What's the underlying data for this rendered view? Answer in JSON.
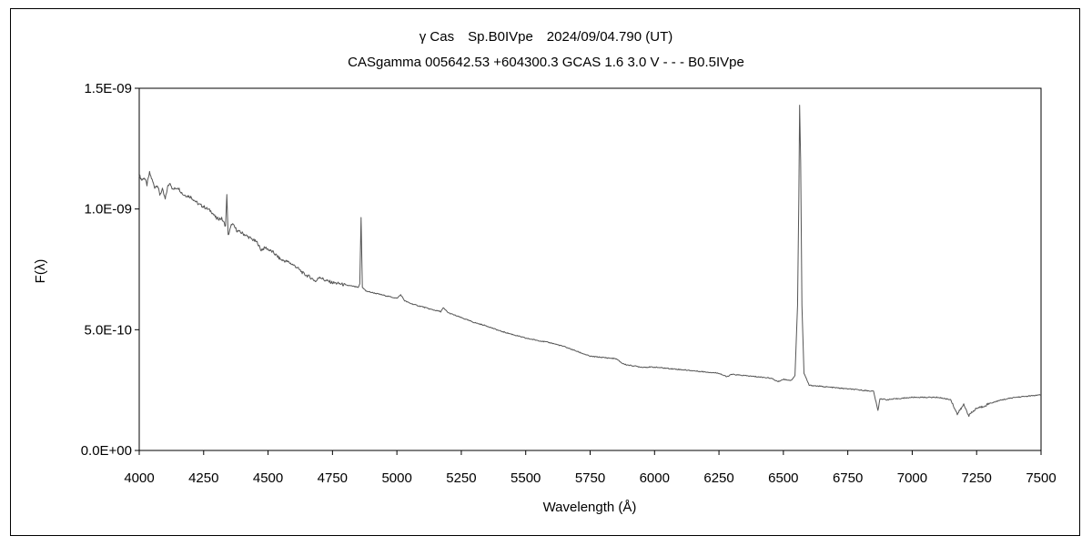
{
  "chart_data": {
    "type": "line",
    "title": "γ Cas　Sp.B0IVpe　2024/09/04.790 (UT)",
    "subtitle": "CASgamma 005642.53 +604300.3 GCAS 1.6 3.0 V - - - B0.5IVpe",
    "xlabel": "Wavelength (Å)",
    "ylabel": "F(λ)",
    "xlim": [
      4000,
      7500
    ],
    "ylim": [
      0,
      1.5e-09
    ],
    "xticks": [
      4000,
      4250,
      4500,
      4750,
      5000,
      5250,
      5500,
      5750,
      6000,
      6250,
      6500,
      6750,
      7000,
      7250,
      7500
    ],
    "xtick_labels": [
      "4000",
      "4250",
      "4500",
      "4750",
      "5000",
      "5250",
      "5500",
      "5750",
      "6000",
      "6250",
      "6500",
      "6750",
      "7000",
      "7250",
      "7500"
    ],
    "yticks": [
      0,
      5e-10,
      1e-09,
      1.5e-09
    ],
    "ytick_labels": [
      "0.0E+00",
      "5.0E-10",
      "1.0E-09",
      "1.5E-09"
    ],
    "grid": false,
    "series": [
      {
        "color": "#555555",
        "x": [
          4000,
          4010,
          4020,
          4030,
          4040,
          4050,
          4060,
          4070,
          4080,
          4090,
          4101,
          4110,
          4120,
          4130,
          4150,
          4170,
          4200,
          4230,
          4250,
          4280,
          4300,
          4320,
          4335,
          4340,
          4345,
          4360,
          4380,
          4400,
          4430,
          4460,
          4471,
          4490,
          4520,
          4550,
          4580,
          4610,
          4640,
          4660,
          4686,
          4700,
          4720,
          4750,
          4780,
          4800,
          4830,
          4850,
          4856,
          4861,
          4866,
          4872,
          4880,
          4920,
          4960,
          5000,
          5015,
          5030,
          5050,
          5080,
          5100,
          5130,
          5170,
          5180,
          5200,
          5250,
          5300,
          5350,
          5400,
          5450,
          5500,
          5550,
          5600,
          5650,
          5700,
          5750,
          5800,
          5850,
          5876,
          5890,
          5920,
          5950,
          6000,
          6050,
          6100,
          6150,
          6200,
          6250,
          6280,
          6300,
          6350,
          6400,
          6450,
          6480,
          6500,
          6530,
          6545,
          6555,
          6560,
          6563,
          6567,
          6572,
          6580,
          6600,
          6650,
          6700,
          6750,
          6850,
          6867,
          6875,
          6900,
          6950,
          7000,
          7050,
          7100,
          7150,
          7175,
          7200,
          7220,
          7250,
          7270,
          7300,
          7350,
          7400,
          7450,
          7500
        ],
        "y": [
          1.14e-09,
          1.12e-09,
          1.13e-09,
          1.1e-09,
          1.15e-09,
          1.12e-09,
          1.09e-09,
          1.1e-09,
          1.06e-09,
          1.08e-09,
          1.04e-09,
          1.09e-09,
          1.11e-09,
          1.08e-09,
          1.09e-09,
          1.06e-09,
          1.05e-09,
          1.02e-09,
          1.01e-09,
          9.9e-10,
          9.6e-10,
          9.6e-10,
          9.3e-10,
          1.06e-09,
          8.9e-10,
          9.4e-10,
          9.1e-10,
          9e-10,
          8.8e-10,
          8.6e-10,
          8.3e-10,
          8.4e-10,
          8.2e-10,
          7.9e-10,
          7.8e-10,
          7.6e-10,
          7.3e-10,
          7.2e-10,
          7e-10,
          7.2e-10,
          7.05e-10,
          6.95e-10,
          6.9e-10,
          6.85e-10,
          6.8e-10,
          6.75e-10,
          6.9e-10,
          9.65e-10,
          6.75e-10,
          6.7e-10,
          6.6e-10,
          6.5e-10,
          6.4e-10,
          6.3e-10,
          6.45e-10,
          6.2e-10,
          6.1e-10,
          6e-10,
          5.95e-10,
          5.85e-10,
          5.75e-10,
          5.9e-10,
          5.7e-10,
          5.5e-10,
          5.3e-10,
          5.15e-10,
          4.95e-10,
          4.8e-10,
          4.65e-10,
          4.55e-10,
          4.45e-10,
          4.3e-10,
          4.1e-10,
          3.9e-10,
          3.85e-10,
          3.8e-10,
          3.6e-10,
          3.55e-10,
          3.5e-10,
          3.45e-10,
          3.45e-10,
          3.4e-10,
          3.35e-10,
          3.3e-10,
          3.25e-10,
          3.2e-10,
          3.05e-10,
          3.15e-10,
          3.1e-10,
          3.05e-10,
          3e-10,
          2.85e-10,
          2.95e-10,
          2.9e-10,
          3.1e-10,
          6e-10,
          1.05e-09,
          1.43e-09,
          1.2e-09,
          6e-10,
          3.2e-10,
          2.7e-10,
          2.65e-10,
          2.6e-10,
          2.55e-10,
          2.45e-10,
          1.65e-10,
          2.15e-10,
          2.1e-10,
          2.15e-10,
          2.2e-10,
          2.2e-10,
          2.2e-10,
          2.1e-10,
          1.5e-10,
          1.9e-10,
          1.45e-10,
          1.75e-10,
          1.8e-10,
          1.95e-10,
          2.1e-10,
          2.2e-10,
          2.25e-10,
          2.3e-10
        ]
      }
    ]
  }
}
